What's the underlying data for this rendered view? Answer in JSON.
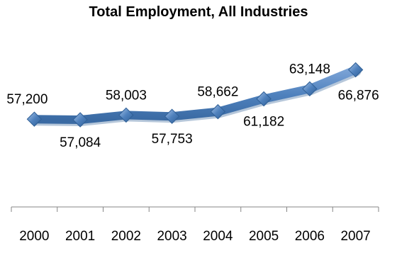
{
  "chart_data": {
    "type": "line",
    "title": "Total Employment, All Industries",
    "categories": [
      "2000",
      "2001",
      "2002",
      "2003",
      "2004",
      "2005",
      "2006",
      "2007"
    ],
    "series": [
      {
        "values": [
          57200,
          57084,
          58003,
          57753,
          58662,
          61182,
          63148,
          66876
        ],
        "labels": [
          "57,200",
          "57,084",
          "58,003",
          "57,753",
          "58,662",
          "61,182",
          "63,148",
          "66,876"
        ]
      }
    ],
    "label_placement": [
      "above",
      "below",
      "above",
      "below",
      "above",
      "below",
      "above",
      "below"
    ],
    "xlabel": "",
    "ylabel": "",
    "grid": false,
    "legend": "none",
    "line_color": "#4a7ebb",
    "marker_color": "#4f81bd"
  }
}
